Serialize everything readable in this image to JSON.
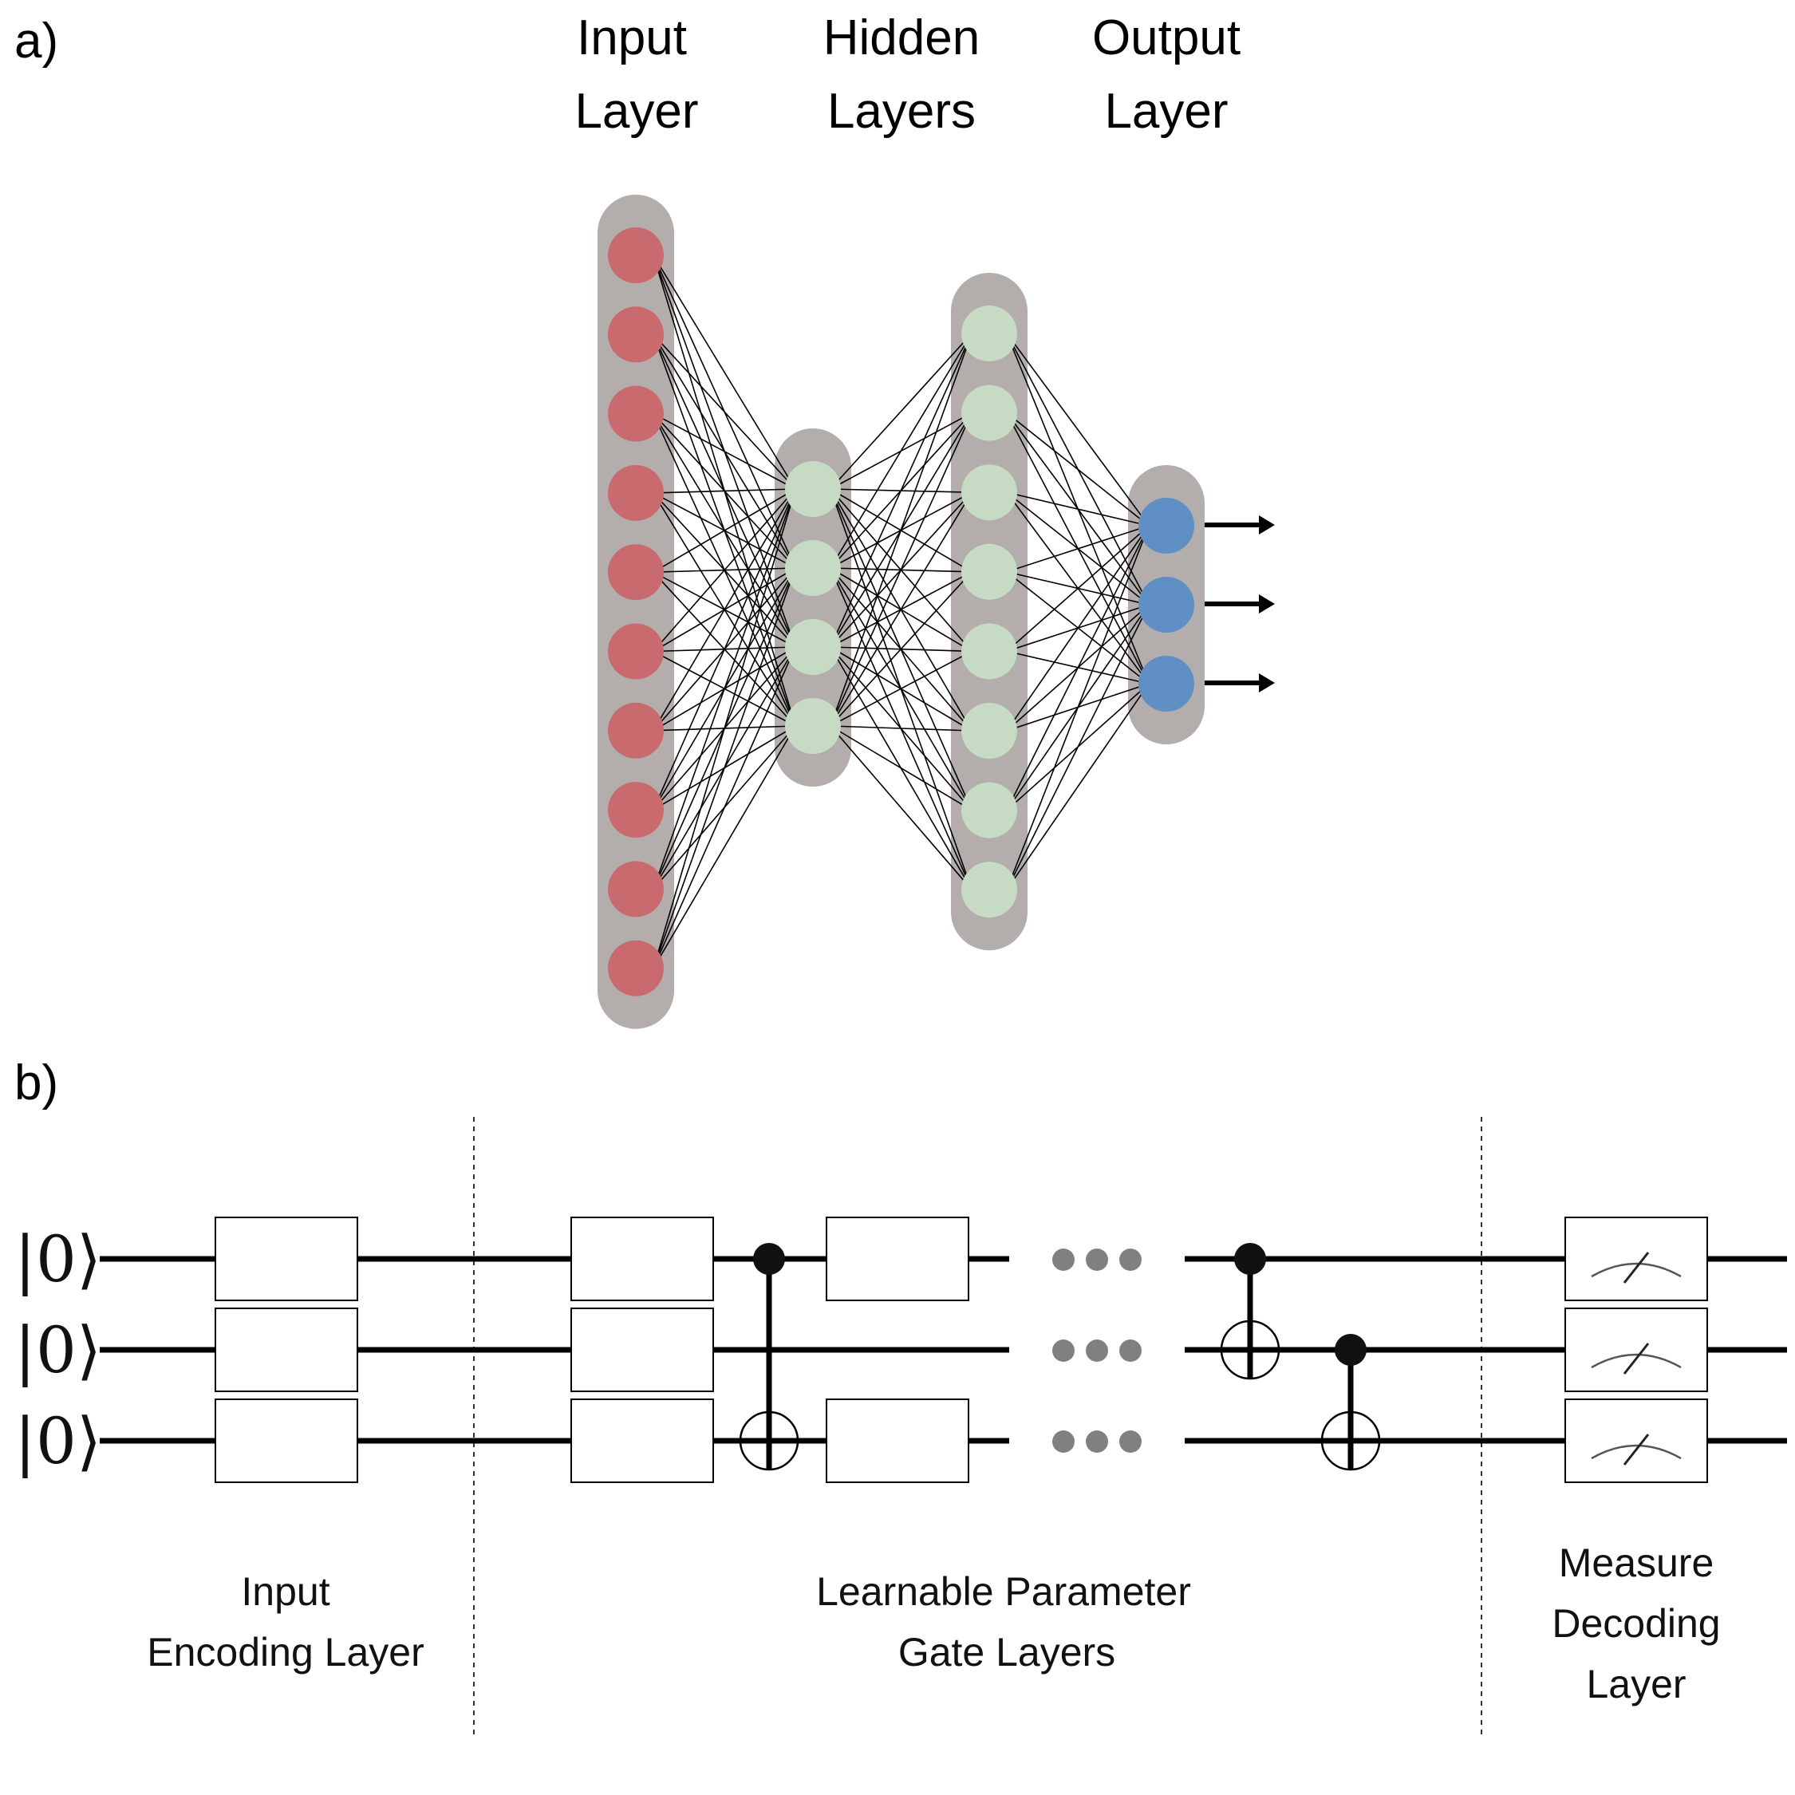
{
  "panel_a": {
    "label": "a)",
    "layer_titles": {
      "input": [
        "Input",
        "Layer"
      ],
      "hidden": [
        "Hidden",
        "Layers"
      ],
      "output": [
        "Output",
        "Layer"
      ]
    },
    "layers": [
      {
        "name": "input",
        "nodes": 10,
        "color": "#c96a6f"
      },
      {
        "name": "hidden-1",
        "nodes": 4,
        "color": "#c6dac4"
      },
      {
        "name": "hidden-2",
        "nodes": 8,
        "color": "#c6dac4"
      },
      {
        "name": "output",
        "nodes": 3,
        "color": "#5f8fc4"
      }
    ],
    "capsule_color": "#b3aeab",
    "output_arrows": 3
  },
  "panel_b": {
    "label": "b)",
    "ket_label": "|0⟩",
    "qubits": 3,
    "sections": {
      "encoding": [
        "Input",
        "Encoding Layer"
      ],
      "learnable": [
        "Learnable Parameter",
        "Gate Layers"
      ],
      "measure": [
        "Measure",
        "Decoding",
        "Layer"
      ]
    },
    "dot_color": "#808080"
  }
}
